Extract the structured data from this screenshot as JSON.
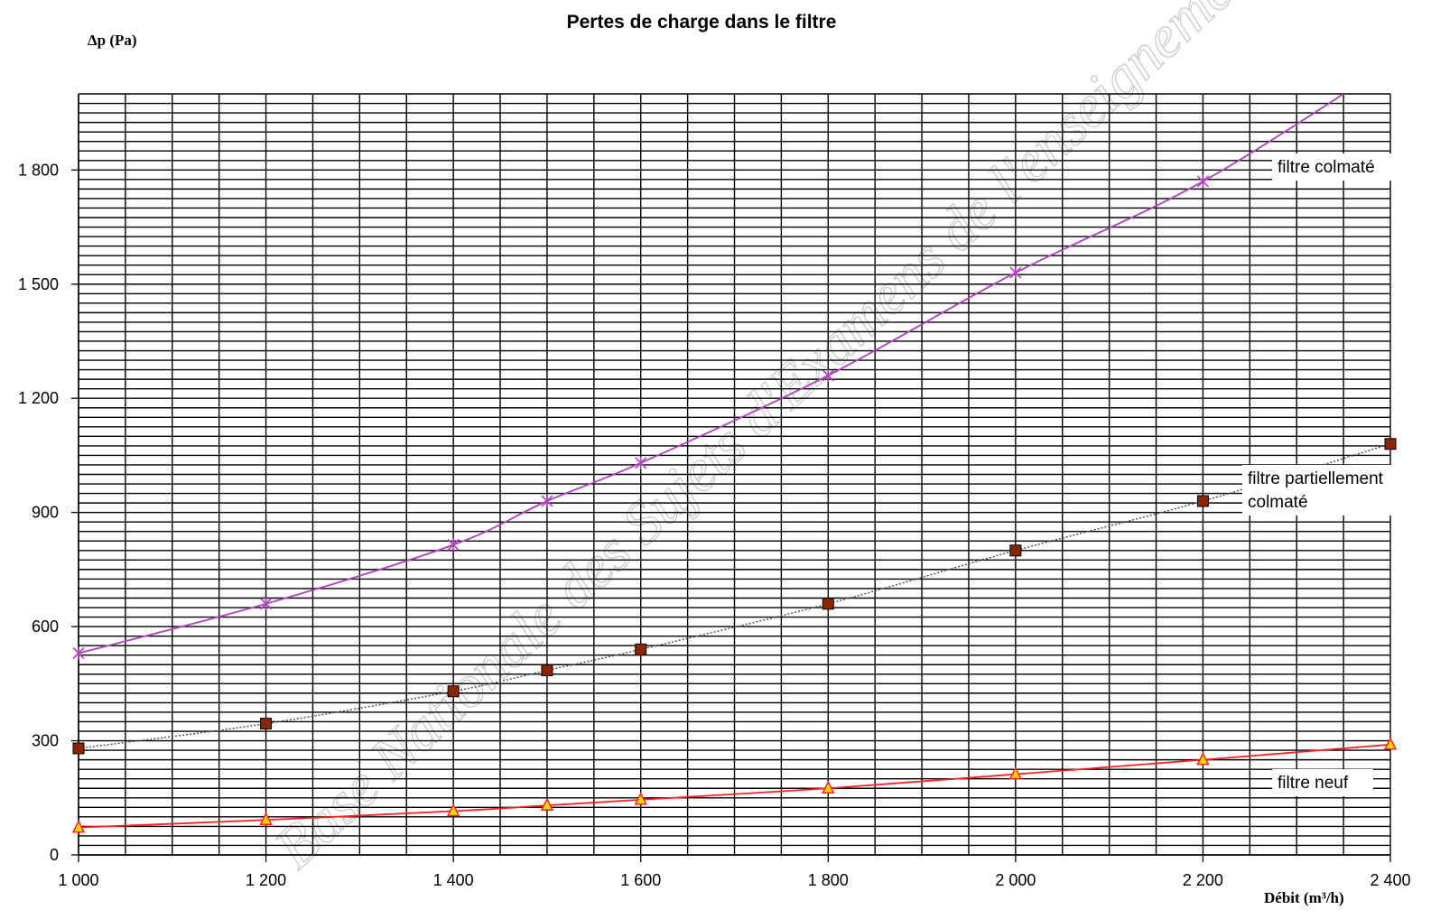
{
  "chart_data": {
    "type": "line",
    "title": "Pertes de charge dans le filtre",
    "ylabel": "Δp (Pa)",
    "xlabel": "Débit (m³/h)",
    "xlim": [
      1000,
      2400
    ],
    "ylim": [
      0,
      2000
    ],
    "x_ticks": [
      1000,
      1200,
      1400,
      1600,
      1800,
      2000,
      2200,
      2400
    ],
    "x_tick_labels": [
      "1 000",
      "1 200",
      "1 400",
      "1 600",
      "1 800",
      "2 000",
      "2 200",
      "2 400"
    ],
    "y_ticks": [
      0,
      300,
      600,
      900,
      1200,
      1500,
      1800
    ],
    "y_tick_labels": [
      "0",
      "300",
      "600",
      "900",
      "1 200",
      "1 500",
      "1 800"
    ],
    "grid": {
      "x_minor_step": 50,
      "y_minor_step": 25
    },
    "series": [
      {
        "name": "filtre colmaté",
        "color": "#b040c0",
        "marker": "star",
        "x": [
          1000,
          1200,
          1400,
          1500,
          1600,
          1800,
          2000,
          2200,
          2400
        ],
        "y": [
          530,
          660,
          815,
          930,
          1030,
          1260,
          1530,
          1770,
          2080
        ]
      },
      {
        "name": "filtre partiellement colmaté",
        "color": "#8b2500",
        "marker": "square",
        "line_style": "dotted",
        "x": [
          1000,
          1200,
          1400,
          1500,
          1600,
          1800,
          2000,
          2200,
          2400
        ],
        "y": [
          280,
          345,
          430,
          485,
          540,
          660,
          800,
          930,
          1080
        ]
      },
      {
        "name": "filtre neuf",
        "color": "#ff2020",
        "marker": "triangle",
        "x": [
          1000,
          1200,
          1400,
          1500,
          1600,
          1800,
          2000,
          2200,
          2400
        ],
        "y": [
          72,
          92,
          115,
          130,
          145,
          175,
          212,
          250,
          290
        ]
      }
    ],
    "annotations": [
      {
        "lines": [
          "filtre colmaté"
        ],
        "series": 0
      },
      {
        "lines": [
          "filtre partiellement",
          "colmaté"
        ],
        "series": 1
      },
      {
        "lines": [
          "filtre neuf"
        ],
        "series": 2
      }
    ]
  },
  "watermark": "Base Nationale des Sujets d'Examens de l'enseignement professionnel"
}
